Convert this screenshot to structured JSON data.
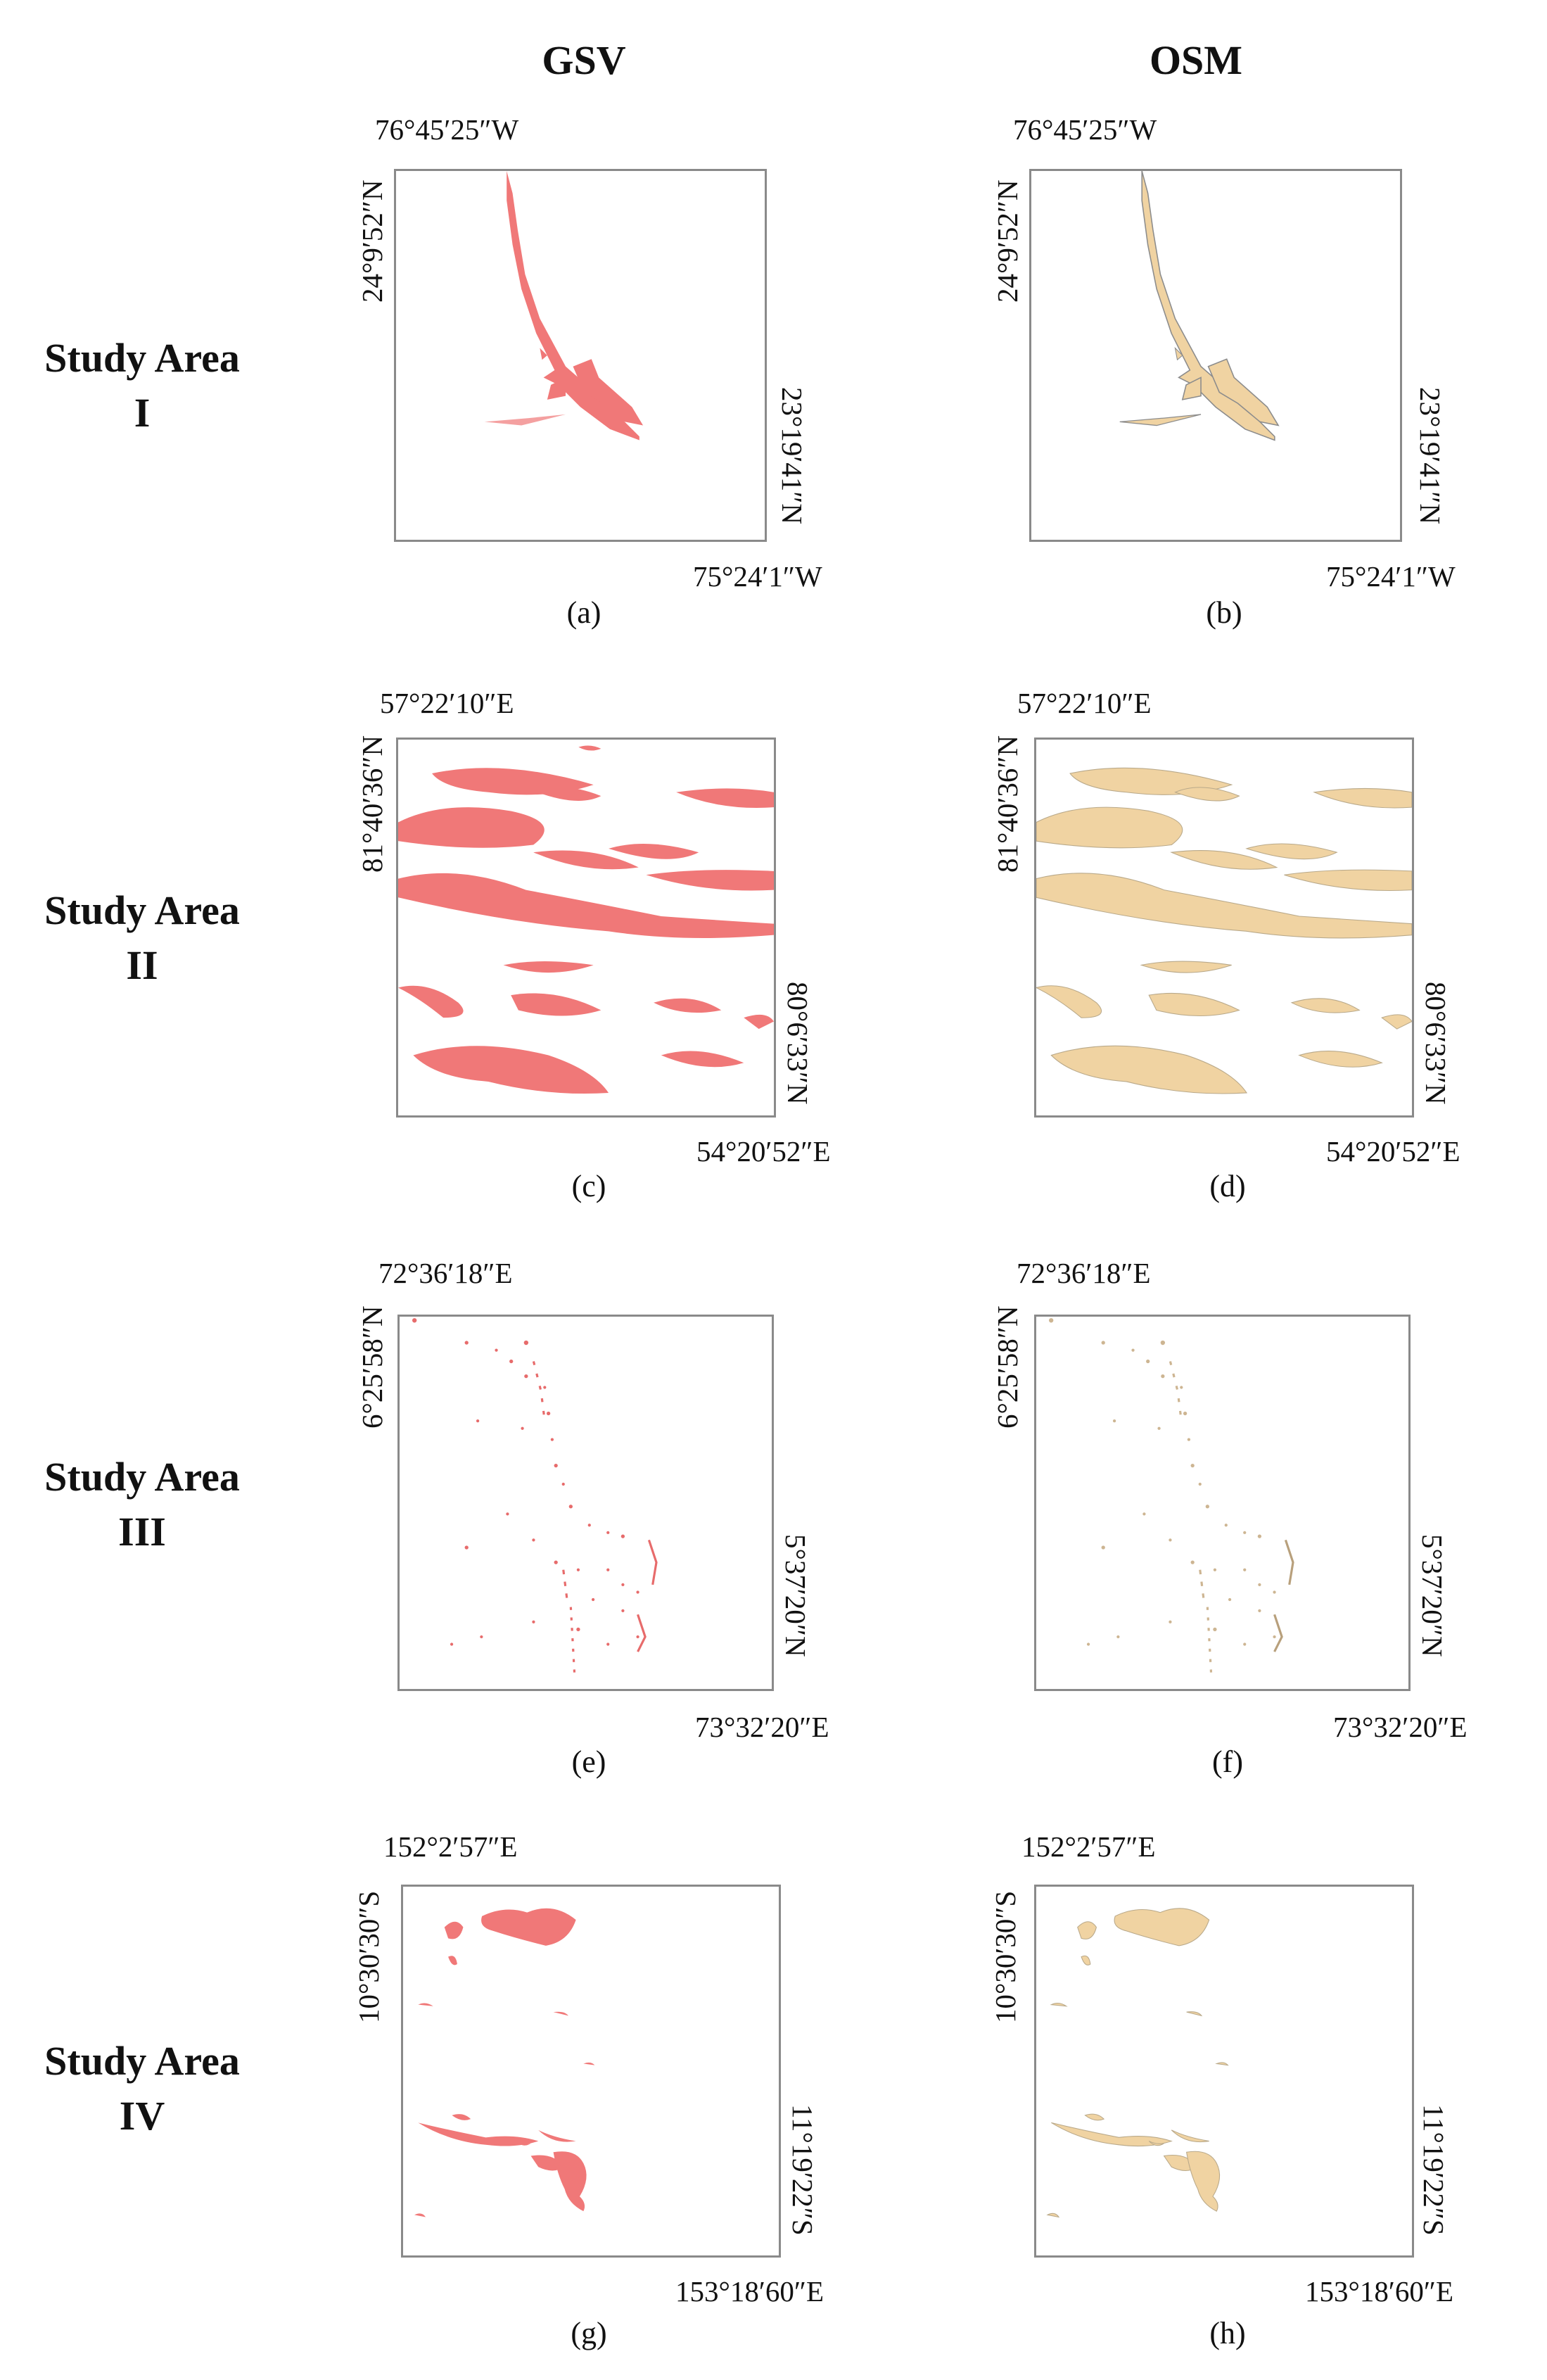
{
  "columns": {
    "gsv": "GSV",
    "osm": "OSM"
  },
  "rows": [
    {
      "label_line1": "Study Area",
      "label_line2": "I"
    },
    {
      "label_line1": "Study Area",
      "label_line2": "II"
    },
    {
      "label_line1": "Study Area",
      "label_line2": "III"
    },
    {
      "label_line1": "Study Area",
      "label_line2": "IV"
    }
  ],
  "panels": {
    "a": {
      "caption": "(a)",
      "top_lon": "76°45′25″W",
      "left_lat": "24°9′52″N",
      "right_lat": "23°19′41″N",
      "bottom_lon": "75°24′1″W"
    },
    "b": {
      "caption": "(b)",
      "top_lon": "76°45′25″W",
      "left_lat": "24°9′52″N",
      "right_lat": "23°19′41″N",
      "bottom_lon": "75°24′1″W"
    },
    "c": {
      "caption": "(c)",
      "top_lon": "57°22′10″E",
      "left_lat": "81°40′36″N",
      "right_lat": "80°6′33″N",
      "bottom_lon": "54°20′52″E"
    },
    "d": {
      "caption": "(d)",
      "top_lon": "57°22′10″E",
      "left_lat": "81°40′36″N",
      "right_lat": "80°6′33″N",
      "bottom_lon": "54°20′52″E"
    },
    "e": {
      "caption": "(e)",
      "top_lon": "72°36′18″E",
      "left_lat": "6°25′58″N",
      "right_lat": "5°37′20″N",
      "bottom_lon": "73°32′20″E"
    },
    "f": {
      "caption": "(f)",
      "top_lon": "72°36′18″E",
      "left_lat": "6°25′58″N",
      "right_lat": "5°37′20″N",
      "bottom_lon": "73°32′20″E"
    },
    "g": {
      "caption": "(g)",
      "top_lon": "152°2′57″E",
      "left_lat": "10°30′30″S",
      "right_lat": "11°19′22″S",
      "bottom_lon": "153°18′60″E"
    },
    "h": {
      "caption": "(h)",
      "top_lon": "152°2′57″E",
      "left_lat": "10°30′30″S",
      "right_lat": "11°19′22″S",
      "bottom_lon": "153°18′60″E"
    }
  },
  "colors": {
    "gsv_fill": "#f07878",
    "osm_fill": "#f0d3a2",
    "osm_outline": "#8c8c8c",
    "frame": "#8a8a8a"
  }
}
